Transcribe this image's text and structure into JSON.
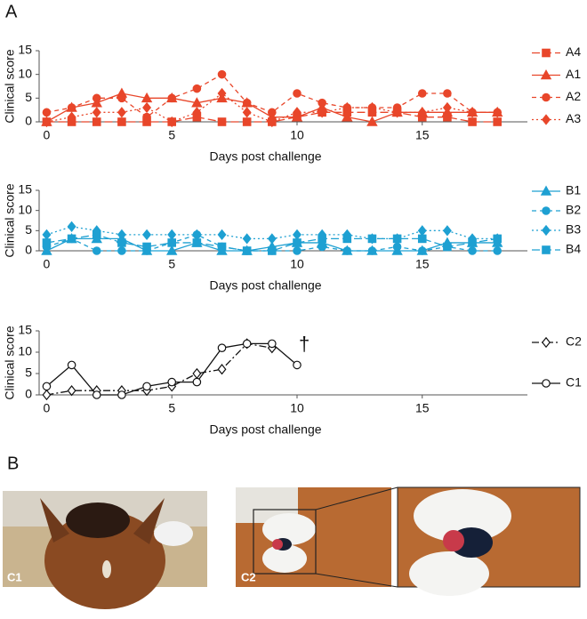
{
  "panel_labels": [
    "A",
    "B"
  ],
  "photo_labels": [
    "C1",
    "C2"
  ],
  "chart_data": [
    {
      "type": "line",
      "xlabel": "Days post challenge",
      "ylabel": "Clinical score",
      "x": [
        0,
        1,
        2,
        3,
        4,
        5,
        6,
        7,
        8,
        9,
        10,
        11,
        12,
        13,
        14,
        15,
        16,
        17,
        18
      ],
      "xlim": [
        -0.3,
        19.2
      ],
      "ylim": [
        0,
        15
      ],
      "xticks": [
        0,
        5,
        10,
        15
      ],
      "yticks": [
        0,
        5,
        10,
        15
      ],
      "series": [
        {
          "name": "A4",
          "color": "#e8462a",
          "marker": "square",
          "filled": true,
          "dash": "longdash",
          "values": [
            0,
            0,
            0,
            0,
            0,
            0,
            1,
            0,
            0,
            0,
            1,
            2,
            2,
            2,
            2,
            1,
            1,
            0,
            0
          ]
        },
        {
          "name": "A1",
          "color": "#e8462a",
          "marker": "triangle",
          "filled": true,
          "dash": "solid",
          "values": [
            0,
            3,
            4,
            6,
            5,
            5,
            4,
            5,
            4,
            1,
            1,
            3,
            1,
            0,
            2,
            2,
            2,
            2,
            2
          ]
        },
        {
          "name": "A2",
          "color": "#e8462a",
          "marker": "circle",
          "filled": true,
          "dash": "dashed",
          "values": [
            2,
            3,
            5,
            5,
            1,
            5,
            7,
            10,
            4,
            2,
            6,
            4,
            3,
            3,
            3,
            6,
            6,
            2,
            2
          ]
        },
        {
          "name": "A3",
          "color": "#e8462a",
          "marker": "diamond",
          "filled": true,
          "dash": "dotted",
          "values": [
            0,
            1,
            2,
            2,
            3,
            0,
            2,
            6,
            2,
            0,
            2,
            2,
            3,
            3,
            2,
            2,
            3,
            2,
            2
          ]
        }
      ]
    },
    {
      "type": "line",
      "xlabel": "Days post challenge",
      "ylabel": "Clinical score",
      "x": [
        0,
        1,
        2,
        3,
        4,
        5,
        6,
        7,
        8,
        9,
        10,
        11,
        12,
        13,
        14,
        15,
        16,
        17,
        18
      ],
      "xlim": [
        -0.3,
        19.2
      ],
      "ylim": [
        0,
        15
      ],
      "xticks": [
        0,
        5,
        10,
        15
      ],
      "yticks": [
        0,
        5,
        10,
        15
      ],
      "series": [
        {
          "name": "B1",
          "color": "#1ea0d2",
          "marker": "triangle",
          "filled": true,
          "dash": "solid",
          "values": [
            0,
            3,
            3,
            3,
            0,
            0,
            2,
            0,
            0,
            1,
            2,
            2,
            0,
            0,
            0,
            0,
            2,
            2,
            2
          ]
        },
        {
          "name": "B2",
          "color": "#1ea0d2",
          "marker": "circle",
          "filled": true,
          "dash": "dashed",
          "values": [
            1,
            3,
            0,
            0,
            0,
            2,
            4,
            1,
            0,
            0,
            0,
            1,
            0,
            0,
            1,
            0,
            1,
            0,
            0
          ]
        },
        {
          "name": "B3",
          "color": "#1ea0d2",
          "marker": "diamond",
          "filled": true,
          "dash": "dotted",
          "values": [
            4,
            6,
            5,
            4,
            4,
            4,
            4,
            4,
            3,
            3,
            4,
            4,
            4,
            3,
            3,
            5,
            5,
            3,
            3
          ]
        },
        {
          "name": "B4",
          "color": "#1ea0d2",
          "marker": "square",
          "filled": true,
          "dash": "longdash",
          "values": [
            2,
            3,
            4,
            2,
            1,
            2,
            2,
            1,
            0,
            0,
            2,
            3,
            3,
            3,
            3,
            3,
            1,
            2,
            3
          ]
        }
      ]
    },
    {
      "type": "line",
      "xlabel": "Days post challenge",
      "ylabel": "Clinical score",
      "x": [
        0,
        1,
        2,
        3,
        4,
        5,
        6,
        7,
        8,
        9,
        10
      ],
      "xlim": [
        -0.3,
        19.2
      ],
      "ylim": [
        0,
        15
      ],
      "xticks": [
        0,
        5,
        10,
        15
      ],
      "yticks": [
        0,
        5,
        10,
        15
      ],
      "annotation": "†",
      "series": [
        {
          "name": "C2",
          "color": "#111111",
          "marker": "diamond",
          "filled": false,
          "dash": "dashdot",
          "values": [
            0,
            1,
            1,
            1,
            1,
            2,
            5,
            6,
            12,
            11,
            null
          ]
        },
        {
          "name": "C1",
          "color": "#111111",
          "marker": "circle",
          "filled": false,
          "dash": "solid",
          "values": [
            2,
            7,
            0,
            0,
            2,
            3,
            3,
            11,
            12,
            12,
            7
          ]
        }
      ]
    }
  ]
}
